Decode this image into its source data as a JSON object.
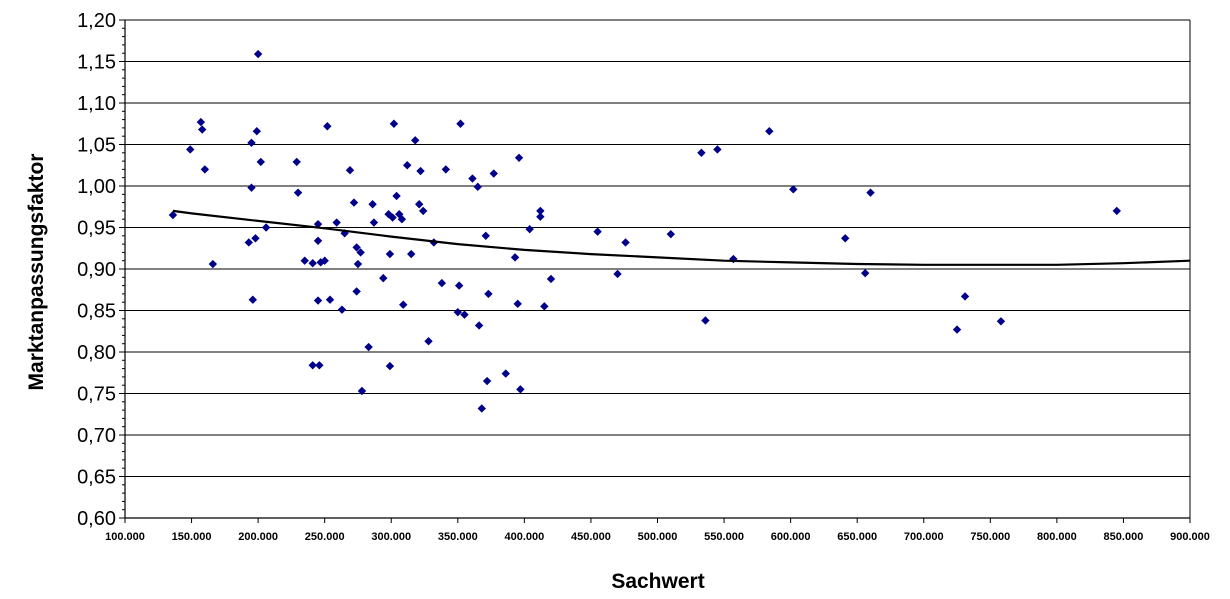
{
  "chart_data": {
    "type": "scatter",
    "xlabel": "Sachwert",
    "ylabel": "Marktanpassungsfaktor",
    "xlim": [
      100000,
      900000
    ],
    "ylim": [
      0.6,
      1.2
    ],
    "x_ticks": [
      "100.000",
      "150.000",
      "200.000",
      "250.000",
      "300.000",
      "350.000",
      "400.000",
      "450.000",
      "500.000",
      "550.000",
      "600.000",
      "650.000",
      "700.000",
      "750.000",
      "800.000",
      "850.000",
      "900.000"
    ],
    "y_ticks": [
      "0,60",
      "0,65",
      "0,70",
      "0,75",
      "0,80",
      "0,85",
      "0,90",
      "0,95",
      "1,00",
      "1,05",
      "1,10",
      "1,15",
      "1,20"
    ],
    "grid": "horizontal major gridlines",
    "marker_color": "#00008B",
    "trendline_color": "#000000",
    "points": [
      [
        136000,
        0.965
      ],
      [
        149000,
        1.044
      ],
      [
        157000,
        1.077
      ],
      [
        158000,
        1.068
      ],
      [
        160000,
        1.02
      ],
      [
        166000,
        0.906
      ],
      [
        193000,
        0.932
      ],
      [
        195000,
        1.052
      ],
      [
        195000,
        0.998
      ],
      [
        196000,
        0.863
      ],
      [
        198000,
        0.937
      ],
      [
        199000,
        1.066
      ],
      [
        200000,
        1.159
      ],
      [
        202000,
        1.029
      ],
      [
        206000,
        0.95
      ],
      [
        229000,
        1.029
      ],
      [
        230000,
        0.992
      ],
      [
        235000,
        0.91
      ],
      [
        241000,
        0.907
      ],
      [
        241000,
        0.784
      ],
      [
        245000,
        0.954
      ],
      [
        245000,
        0.934
      ],
      [
        245000,
        0.862
      ],
      [
        246000,
        0.784
      ],
      [
        247000,
        0.908
      ],
      [
        250000,
        0.91
      ],
      [
        252000,
        1.072
      ],
      [
        254000,
        0.863
      ],
      [
        259000,
        0.956
      ],
      [
        263000,
        0.851
      ],
      [
        265000,
        0.943
      ],
      [
        269000,
        1.019
      ],
      [
        272000,
        0.98
      ],
      [
        274000,
        0.873
      ],
      [
        274000,
        0.926
      ],
      [
        275000,
        0.906
      ],
      [
        277000,
        0.92
      ],
      [
        278000,
        0.753
      ],
      [
        283000,
        0.806
      ],
      [
        286000,
        0.978
      ],
      [
        287000,
        0.956
      ],
      [
        294000,
        0.889
      ],
      [
        298000,
        0.966
      ],
      [
        299000,
        0.918
      ],
      [
        299000,
        0.783
      ],
      [
        301000,
        0.962
      ],
      [
        302000,
        1.075
      ],
      [
        304000,
        0.988
      ],
      [
        306000,
        0.966
      ],
      [
        308000,
        0.96
      ],
      [
        309000,
        0.857
      ],
      [
        312000,
        1.025
      ],
      [
        315000,
        0.918
      ],
      [
        318000,
        1.055
      ],
      [
        321000,
        0.978
      ],
      [
        322000,
        1.018
      ],
      [
        324000,
        0.97
      ],
      [
        328000,
        0.813
      ],
      [
        332000,
        0.932
      ],
      [
        338000,
        0.883
      ],
      [
        341000,
        1.02
      ],
      [
        350000,
        0.848
      ],
      [
        351000,
        0.88
      ],
      [
        352000,
        1.075
      ],
      [
        355000,
        0.845
      ],
      [
        361000,
        1.009
      ],
      [
        365000,
        0.999
      ],
      [
        366000,
        0.832
      ],
      [
        368000,
        0.732
      ],
      [
        371000,
        0.94
      ],
      [
        372000,
        0.765
      ],
      [
        373000,
        0.87
      ],
      [
        377000,
        1.015
      ],
      [
        386000,
        0.774
      ],
      [
        393000,
        0.914
      ],
      [
        395000,
        0.858
      ],
      [
        396000,
        1.034
      ],
      [
        397000,
        0.755
      ],
      [
        404000,
        0.948
      ],
      [
        412000,
        0.97
      ],
      [
        412000,
        0.963
      ],
      [
        415000,
        0.855
      ],
      [
        420000,
        0.888
      ],
      [
        455000,
        0.945
      ],
      [
        470000,
        0.894
      ],
      [
        476000,
        0.932
      ],
      [
        510000,
        0.942
      ],
      [
        533000,
        1.04
      ],
      [
        536000,
        0.838
      ],
      [
        545000,
        1.044
      ],
      [
        557000,
        0.912
      ],
      [
        584000,
        1.066
      ],
      [
        602000,
        0.996
      ],
      [
        641000,
        0.937
      ],
      [
        656000,
        0.895
      ],
      [
        660000,
        0.992
      ],
      [
        725000,
        0.827
      ],
      [
        731000,
        0.867
      ],
      [
        758000,
        0.837
      ],
      [
        845000,
        0.97
      ]
    ],
    "trendline": [
      [
        136000,
        0.97
      ],
      [
        150000,
        0.967
      ],
      [
        200000,
        0.958
      ],
      [
        250000,
        0.949
      ],
      [
        300000,
        0.939
      ],
      [
        350000,
        0.93
      ],
      [
        400000,
        0.923
      ],
      [
        450000,
        0.918
      ],
      [
        500000,
        0.914
      ],
      [
        550000,
        0.91
      ],
      [
        600000,
        0.908
      ],
      [
        650000,
        0.906
      ],
      [
        700000,
        0.905
      ],
      [
        750000,
        0.905
      ],
      [
        800000,
        0.905
      ],
      [
        850000,
        0.907
      ],
      [
        900000,
        0.91
      ]
    ]
  }
}
